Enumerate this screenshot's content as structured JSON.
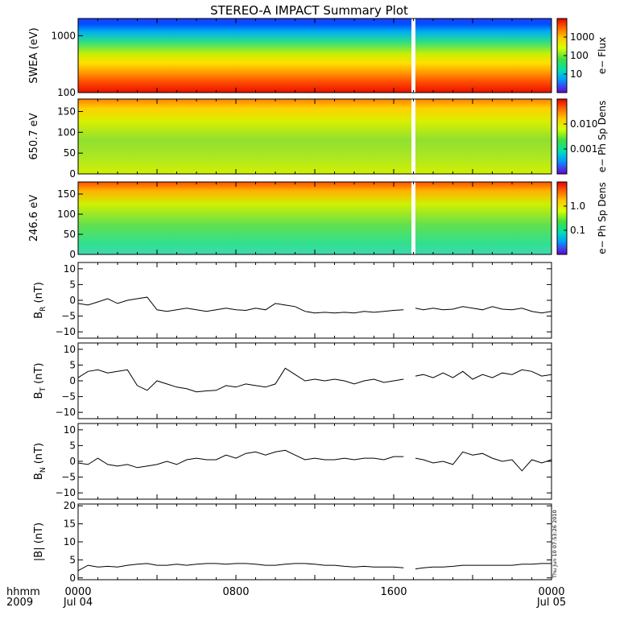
{
  "title": "STEREO-A IMPACT Summary Plot",
  "time_axis": {
    "row1_label": "hhmm",
    "row2_label": "2009",
    "ticks": [
      {
        "t": 0,
        "label": "0000",
        "date": "Jul 04"
      },
      {
        "t": 8,
        "label": "0800",
        "date": ""
      },
      {
        "t": 16,
        "label": "1600",
        "date": ""
      },
      {
        "t": 24,
        "label": "0000",
        "date": "Jul 05"
      }
    ],
    "range_hours": [
      0,
      24
    ]
  },
  "timestamp": "Thu Jun 10 07:53:26 2010",
  "colorbars": [
    {
      "label": "e− Flux",
      "ticks": [
        "1000",
        "100",
        "10"
      ],
      "scale": "log"
    },
    {
      "label": "e− Ph Sp Dens",
      "ticks": [
        "0.010",
        "0.001"
      ],
      "scale": "log"
    },
    {
      "label": "e− Ph Sp Dens",
      "ticks": [
        "1.0",
        "0.1"
      ],
      "scale": "log"
    }
  ],
  "colors": {
    "line": "#000000",
    "colormap": "rainbow"
  },
  "chart_data": [
    {
      "type": "heatmap",
      "ylabel": "SWEA (eV)",
      "yscale": "log",
      "yticks": [
        100,
        1000
      ],
      "ytick_labels": [
        "100",
        "1000"
      ],
      "ylim": [
        100,
        2000
      ],
      "data_gap_hours": [
        16.9,
        17.1
      ],
      "note": ""
    },
    {
      "type": "heatmap",
      "ylabel": "650.7 eV",
      "yticks": [
        0,
        50,
        100,
        150
      ],
      "ytick_labels": [
        "0",
        "50",
        "100",
        "150"
      ],
      "ylim": [
        0,
        180
      ],
      "data_gap_hours": [
        16.9,
        17.1
      ]
    },
    {
      "type": "heatmap",
      "ylabel": "246.6 eV",
      "yticks": [
        0,
        50,
        100,
        150
      ],
      "ytick_labels": [
        "0",
        "50",
        "100",
        "150"
      ],
      "ylim": [
        0,
        180
      ],
      "data_gap_hours": [
        16.9,
        17.1
      ]
    },
    {
      "type": "line",
      "ylabel_main": "B",
      "ylabel_sub": "R",
      "ylabel_unit": " (nT)",
      "ylim": [
        -12,
        12
      ],
      "yticks": [
        -10,
        -5,
        0,
        5,
        10
      ],
      "ytick_labels": [
        "−10",
        "−5",
        "0",
        "5",
        "10"
      ],
      "x": [
        0,
        0.5,
        1,
        1.5,
        2,
        2.5,
        3,
        3.5,
        4,
        4.5,
        5,
        5.5,
        6,
        6.5,
        7,
        7.5,
        8,
        8.5,
        9,
        9.5,
        10,
        10.5,
        11,
        11.5,
        12,
        12.5,
        13,
        13.5,
        14,
        14.5,
        15,
        15.5,
        16,
        16.5,
        17.1,
        17.5,
        18,
        18.5,
        19,
        19.5,
        20,
        20.5,
        21,
        21.5,
        22,
        22.5,
        23,
        23.5,
        24
      ],
      "values": [
        -1,
        -1.5,
        -0.5,
        0.5,
        -1,
        0,
        0.5,
        1,
        -3,
        -3.5,
        -3,
        -2.5,
        -3,
        -3.5,
        -3,
        -2.5,
        -3,
        -3.2,
        -2.5,
        -3,
        -1,
        -1.5,
        -2,
        -3.5,
        -4,
        -3.8,
        -4,
        -3.8,
        -4,
        -3.5,
        -3.8,
        -3.5,
        -3.2,
        -3,
        -2.5,
        -3,
        -2.5,
        -3,
        -2.8,
        -2,
        -2.5,
        -3,
        -2,
        -2.8,
        -3,
        -2.5,
        -3.5,
        -4,
        -3.5
      ]
    },
    {
      "type": "line",
      "ylabel_main": "B",
      "ylabel_sub": "T",
      "ylabel_unit": " (nT)",
      "ylim": [
        -12,
        12
      ],
      "yticks": [
        -10,
        -5,
        0,
        5,
        10
      ],
      "ytick_labels": [
        "−10",
        "−5",
        "0",
        "5",
        "10"
      ],
      "x": [
        0,
        0.5,
        1,
        1.5,
        2,
        2.5,
        3,
        3.5,
        4,
        4.5,
        5,
        5.5,
        6,
        6.5,
        7,
        7.5,
        8,
        8.5,
        9,
        9.5,
        10,
        10.5,
        11,
        11.5,
        12,
        12.5,
        13,
        13.5,
        14,
        14.5,
        15,
        15.5,
        16,
        16.5,
        17.1,
        17.5,
        18,
        18.5,
        19,
        19.5,
        20,
        20.5,
        21,
        21.5,
        22,
        22.5,
        23,
        23.5,
        24
      ],
      "values": [
        1,
        3,
        3.5,
        2.5,
        3,
        3.5,
        -1.5,
        -3,
        0,
        -1,
        -2,
        -2.5,
        -3.5,
        -3.2,
        -3,
        -1.5,
        -2,
        -1,
        -1.5,
        -2,
        -1,
        4,
        2,
        0,
        0.5,
        0,
        0.5,
        0,
        -1,
        0,
        0.5,
        -0.5,
        0,
        0.5,
        1.5,
        2,
        1,
        2.5,
        1,
        3,
        0.5,
        2,
        1,
        2.5,
        2,
        3.5,
        3,
        1.5,
        2
      ]
    },
    {
      "type": "line",
      "ylabel_main": "B",
      "ylabel_sub": "N",
      "ylabel_unit": " (nT)",
      "ylim": [
        -12,
        12
      ],
      "yticks": [
        -10,
        -5,
        0,
        5,
        10
      ],
      "ytick_labels": [
        "−10",
        "−5",
        "0",
        "5",
        "10"
      ],
      "x": [
        0,
        0.5,
        1,
        1.5,
        2,
        2.5,
        3,
        3.5,
        4,
        4.5,
        5,
        5.5,
        6,
        6.5,
        7,
        7.5,
        8,
        8.5,
        9,
        9.5,
        10,
        10.5,
        11,
        11.5,
        12,
        12.5,
        13,
        13.5,
        14,
        14.5,
        15,
        15.5,
        16,
        16.5,
        17.1,
        17.5,
        18,
        18.5,
        19,
        19.5,
        20,
        20.5,
        21,
        21.5,
        22,
        22.5,
        23,
        23.5,
        24
      ],
      "values": [
        -0.5,
        -1,
        1,
        -1,
        -1.5,
        -1,
        -2,
        -1.5,
        -1,
        0,
        -1,
        0.5,
        1,
        0.5,
        0.5,
        2,
        1,
        2.5,
        3,
        2,
        3,
        3.5,
        2,
        0.5,
        1,
        0.5,
        0.5,
        1,
        0.5,
        1,
        1,
        0.5,
        1.5,
        1.5,
        1,
        0.5,
        -0.5,
        0,
        -1,
        3,
        2,
        2.5,
        1,
        0,
        0.5,
        -3,
        0.5,
        -0.5,
        0.5
      ]
    },
    {
      "type": "line",
      "ylabel_main": "|B|",
      "ylabel_sub": "",
      "ylabel_unit": " (nT)",
      "ylim": [
        -0.5,
        20.5
      ],
      "yticks": [
        0,
        5,
        10,
        15,
        20
      ],
      "ytick_labels": [
        "0",
        "5",
        "10",
        "15",
        "20"
      ],
      "x": [
        0,
        0.5,
        1,
        1.5,
        2,
        2.5,
        3,
        3.5,
        4,
        4.5,
        5,
        5.5,
        6,
        6.5,
        7,
        7.5,
        8,
        8.5,
        9,
        9.5,
        10,
        10.5,
        11,
        11.5,
        12,
        12.5,
        13,
        13.5,
        14,
        14.5,
        15,
        15.5,
        16,
        16.5,
        17.1,
        17.5,
        18,
        18.5,
        19,
        19.5,
        20,
        20.5,
        21,
        21.5,
        22,
        22.5,
        23,
        23.5,
        24
      ],
      "values": [
        2,
        3.5,
        3,
        3.2,
        3,
        3.5,
        3.8,
        4,
        3.5,
        3.5,
        3.8,
        3.5,
        3.8,
        4,
        4,
        3.8,
        4,
        4,
        3.8,
        3.5,
        3.5,
        3.8,
        4,
        4,
        3.8,
        3.5,
        3.5,
        3.2,
        3,
        3.2,
        3,
        3,
        3,
        2.8,
        2.5,
        2.8,
        3,
        3,
        3.2,
        3.5,
        3.5,
        3.5,
        3.5,
        3.5,
        3.5,
        3.8,
        3.8,
        4,
        4
      ]
    }
  ]
}
